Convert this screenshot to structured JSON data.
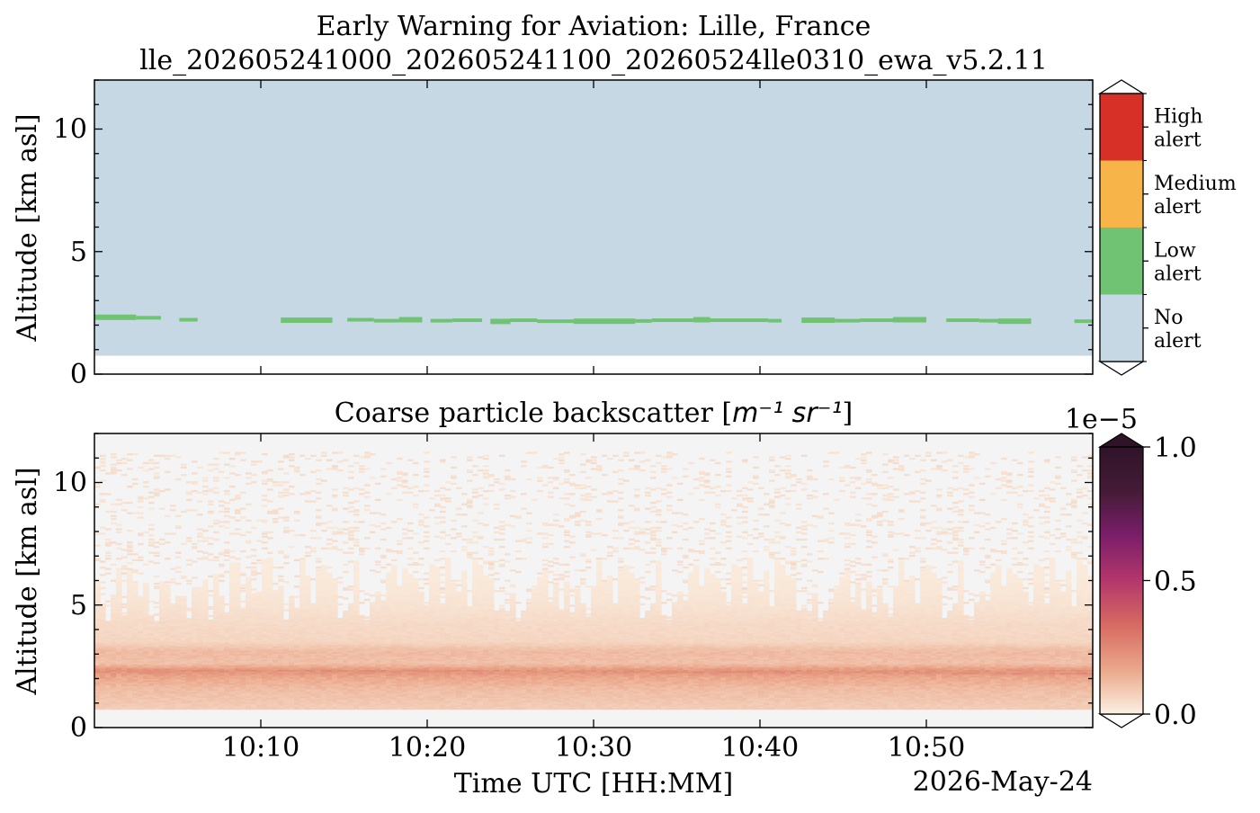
{
  "figure": {
    "title_line1": "Early Warning for Aviation: Lille, France",
    "title_line2": "lle_202605241000_202605241100_20260524lle0310_ewa_v5.2.11",
    "date_label": "2026-May-24"
  },
  "chart_data": [
    {
      "type": "heatmap",
      "name": "ewa-alert-panel",
      "title": "",
      "xlabel": "",
      "ylabel": "Altitude [km asl]",
      "xlim": [
        "10:00",
        "11:00"
      ],
      "ylim": [
        0,
        12
      ],
      "yticks": [
        0,
        5,
        10
      ],
      "colors": {
        "no_alert": "#c5d8e4",
        "low_alert": "#70c372",
        "medium_alert": "#f6b449",
        "high_alert": "#d63027"
      },
      "colorbar": {
        "categories": [
          {
            "line1": "High",
            "line2": "alert",
            "color": "#d63027"
          },
          {
            "line1": "Medium",
            "line2": "alert",
            "color": "#f6b449"
          },
          {
            "line1": "Low",
            "line2": "alert",
            "color": "#70c372"
          },
          {
            "line1": "No",
            "line2": "alert",
            "color": "#c5d8e4"
          }
        ]
      },
      "no_alert_region": {
        "t_start": "10:00",
        "t_end": "11:00",
        "alt_bottom_km": 0.75,
        "alt_top_km": 12
      },
      "low_alert_segments": [
        {
          "t0": 0.0,
          "t1": 2.5,
          "alt": 2.32
        },
        {
          "t0": 2.5,
          "t1": 4.0,
          "alt": 2.3
        },
        {
          "t0": 5.1,
          "t1": 6.2,
          "alt": 2.22
        },
        {
          "t0": 11.2,
          "t1": 14.3,
          "alt": 2.2
        },
        {
          "t0": 15.2,
          "t1": 16.8,
          "alt": 2.22
        },
        {
          "t0": 16.8,
          "t1": 18.3,
          "alt": 2.18
        },
        {
          "t0": 18.3,
          "t1": 19.7,
          "alt": 2.22
        },
        {
          "t0": 20.2,
          "t1": 21.5,
          "alt": 2.18
        },
        {
          "t0": 21.5,
          "t1": 23.3,
          "alt": 2.2
        },
        {
          "t0": 23.8,
          "t1": 25.0,
          "alt": 2.15
        },
        {
          "t0": 25.0,
          "t1": 26.6,
          "alt": 2.2
        },
        {
          "t0": 26.6,
          "t1": 28.8,
          "alt": 2.16
        },
        {
          "t0": 28.8,
          "t1": 32.5,
          "alt": 2.16
        },
        {
          "t0": 32.5,
          "t1": 33.5,
          "alt": 2.17
        },
        {
          "t0": 33.5,
          "t1": 36.0,
          "alt": 2.2
        },
        {
          "t0": 36.0,
          "t1": 37.0,
          "alt": 2.22
        },
        {
          "t0": 37.0,
          "t1": 40.5,
          "alt": 2.2
        },
        {
          "t0": 40.5,
          "t1": 41.3,
          "alt": 2.18
        },
        {
          "t0": 42.5,
          "t1": 44.5,
          "alt": 2.2
        },
        {
          "t0": 44.5,
          "t1": 46.0,
          "alt": 2.18
        },
        {
          "t0": 46.0,
          "t1": 48.0,
          "alt": 2.2
        },
        {
          "t0": 48.0,
          "t1": 50.0,
          "alt": 2.22
        },
        {
          "t0": 51.2,
          "t1": 53.2,
          "alt": 2.2
        },
        {
          "t0": 53.2,
          "t1": 54.3,
          "alt": 2.18
        },
        {
          "t0": 54.3,
          "t1": 56.3,
          "alt": 2.16
        },
        {
          "t0": 58.9,
          "t1": 60.0,
          "alt": 2.16
        }
      ]
    },
    {
      "type": "heatmap",
      "name": "coarse-backscatter-panel",
      "title_prefix": "Coarse particle backscatter [",
      "title_math": "m⁻¹ sr⁻¹",
      "title_suffix": "]",
      "xlabel": "Time UTC [HH:MM]",
      "ylabel": "Altitude [km asl]",
      "xlim": [
        "10:00",
        "11:00"
      ],
      "xticks": [
        "10:10",
        "10:20",
        "10:30",
        "10:40",
        "10:50"
      ],
      "ylim": [
        0,
        12
      ],
      "yticks": [
        0,
        5,
        10
      ],
      "colorbar": {
        "exponent": "1e−5",
        "range": [
          0.0,
          1.0
        ],
        "ticks": [
          "0.0",
          "0.5",
          "1.0"
        ],
        "colors": [
          "#fbf0e2",
          "#eaa78a",
          "#d76a62",
          "#b3376b",
          "#7b1e6a",
          "#451b37",
          "#2f1428"
        ]
      },
      "background_color": "#f4f4f4",
      "data_bottom_km": 0.75,
      "profile": [
        {
          "alt_km": 0.75,
          "value": 0.08
        },
        {
          "alt_km": 1.2,
          "value": 0.1
        },
        {
          "alt_km": 1.6,
          "value": 0.12
        },
        {
          "alt_km": 2.0,
          "value": 0.16
        },
        {
          "alt_km": 2.3,
          "value": 0.22
        },
        {
          "alt_km": 2.6,
          "value": 0.11
        },
        {
          "alt_km": 3.1,
          "value": 0.12
        },
        {
          "alt_km": 3.5,
          "value": 0.06
        },
        {
          "alt_km": 4.2,
          "value": 0.05
        },
        {
          "alt_km": 5.0,
          "value": 0.03
        },
        {
          "alt_km": 6.0,
          "value": 0.015
        },
        {
          "alt_km": 8.0,
          "value": 0.01
        },
        {
          "alt_km": 11.2,
          "value": 0.0
        }
      ],
      "peak_layer": {
        "alt_km_at_start": 2.35,
        "alt_km_at_end": 2.2,
        "value": 0.24
      }
    }
  ]
}
